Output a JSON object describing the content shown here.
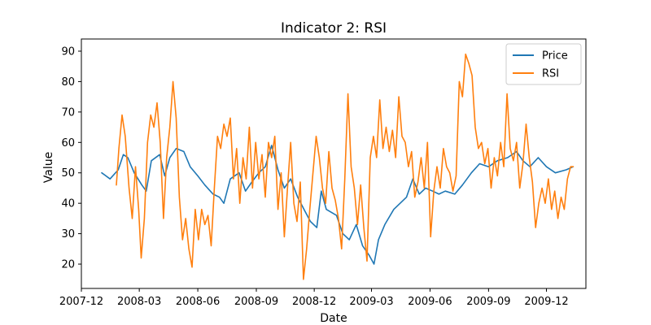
{
  "chart_data": {
    "type": "line",
    "title": "Indicator 2: RSI",
    "xlabel": "Date",
    "ylabel": "Value",
    "xlim": [
      "2007-12-01",
      "2010-02-01"
    ],
    "ylim": [
      12,
      94
    ],
    "x_ticks": [
      "2007-12",
      "2008-03",
      "2008-06",
      "2008-09",
      "2008-12",
      "2009-03",
      "2009-06",
      "2009-09",
      "2009-12"
    ],
    "y_ticks": [
      20,
      30,
      40,
      50,
      60,
      70,
      80,
      90
    ],
    "legend": {
      "position": "top-right"
    },
    "series": [
      {
        "name": "Price",
        "color": "#1f77b4",
        "points": [
          [
            "2008-01-02",
            50
          ],
          [
            "2008-01-15",
            48
          ],
          [
            "2008-01-28",
            51
          ],
          [
            "2008-02-05",
            56
          ],
          [
            "2008-02-12",
            55
          ],
          [
            "2008-02-22",
            50
          ],
          [
            "2008-03-05",
            46
          ],
          [
            "2008-03-12",
            44
          ],
          [
            "2008-03-20",
            54
          ],
          [
            "2008-04-02",
            56
          ],
          [
            "2008-04-10",
            49
          ],
          [
            "2008-04-18",
            55
          ],
          [
            "2008-04-28",
            58
          ],
          [
            "2008-05-10",
            57
          ],
          [
            "2008-05-20",
            52
          ],
          [
            "2008-06-01",
            49
          ],
          [
            "2008-06-12",
            46
          ],
          [
            "2008-06-25",
            43
          ],
          [
            "2008-07-05",
            42
          ],
          [
            "2008-07-12",
            40
          ],
          [
            "2008-07-22",
            48
          ],
          [
            "2008-08-05",
            50
          ],
          [
            "2008-08-15",
            44
          ],
          [
            "2008-08-25",
            47
          ],
          [
            "2008-09-05",
            50
          ],
          [
            "2008-09-15",
            52
          ],
          [
            "2008-09-25",
            59
          ],
          [
            "2008-10-05",
            51
          ],
          [
            "2008-10-15",
            45
          ],
          [
            "2008-10-25",
            48
          ],
          [
            "2008-11-05",
            42
          ],
          [
            "2008-11-15",
            38
          ],
          [
            "2008-11-25",
            34
          ],
          [
            "2008-12-05",
            32
          ],
          [
            "2008-12-12",
            44
          ],
          [
            "2008-12-20",
            38
          ],
          [
            "2009-01-05",
            36
          ],
          [
            "2009-01-15",
            30
          ],
          [
            "2009-01-25",
            28
          ],
          [
            "2009-02-05",
            33
          ],
          [
            "2009-02-15",
            26
          ],
          [
            "2009-02-25",
            23
          ],
          [
            "2009-03-05",
            20
          ],
          [
            "2009-03-12",
            28
          ],
          [
            "2009-03-22",
            33
          ],
          [
            "2009-04-05",
            38
          ],
          [
            "2009-04-15",
            40
          ],
          [
            "2009-04-25",
            42
          ],
          [
            "2009-05-05",
            48
          ],
          [
            "2009-05-15",
            43
          ],
          [
            "2009-05-25",
            45
          ],
          [
            "2009-06-05",
            44
          ],
          [
            "2009-06-15",
            43
          ],
          [
            "2009-06-25",
            44
          ],
          [
            "2009-07-10",
            43
          ],
          [
            "2009-07-22",
            46
          ],
          [
            "2009-08-05",
            50
          ],
          [
            "2009-08-18",
            53
          ],
          [
            "2009-09-01",
            52
          ],
          [
            "2009-09-15",
            54
          ],
          [
            "2009-10-01",
            55
          ],
          [
            "2009-10-15",
            57
          ],
          [
            "2009-10-25",
            54
          ],
          [
            "2009-11-05",
            52
          ],
          [
            "2009-11-18",
            55
          ],
          [
            "2009-12-01",
            52
          ],
          [
            "2009-12-15",
            50
          ],
          [
            "2010-01-01",
            51
          ],
          [
            "2010-01-12",
            52
          ]
        ]
      },
      {
        "name": "RSI",
        "color": "#ff7f0e",
        "points": [
          [
            "2008-01-25",
            46
          ],
          [
            "2008-01-29",
            58
          ],
          [
            "2008-02-03",
            69
          ],
          [
            "2008-02-08",
            62
          ],
          [
            "2008-02-14",
            45
          ],
          [
            "2008-02-19",
            35
          ],
          [
            "2008-02-24",
            52
          ],
          [
            "2008-02-29",
            38
          ],
          [
            "2008-03-04",
            22
          ],
          [
            "2008-03-09",
            35
          ],
          [
            "2008-03-14",
            60
          ],
          [
            "2008-03-19",
            69
          ],
          [
            "2008-03-24",
            65
          ],
          [
            "2008-03-29",
            73
          ],
          [
            "2008-04-03",
            60
          ],
          [
            "2008-04-08",
            35
          ],
          [
            "2008-04-13",
            55
          ],
          [
            "2008-04-18",
            65
          ],
          [
            "2008-04-23",
            80
          ],
          [
            "2008-04-28",
            68
          ],
          [
            "2008-05-03",
            42
          ],
          [
            "2008-05-08",
            28
          ],
          [
            "2008-05-13",
            35
          ],
          [
            "2008-05-18",
            25
          ],
          [
            "2008-05-23",
            19
          ],
          [
            "2008-05-28",
            38
          ],
          [
            "2008-06-02",
            28
          ],
          [
            "2008-06-07",
            38
          ],
          [
            "2008-06-12",
            33
          ],
          [
            "2008-06-17",
            36
          ],
          [
            "2008-06-22",
            26
          ],
          [
            "2008-06-27",
            45
          ],
          [
            "2008-07-02",
            62
          ],
          [
            "2008-07-07",
            58
          ],
          [
            "2008-07-12",
            66
          ],
          [
            "2008-07-17",
            62
          ],
          [
            "2008-07-22",
            68
          ],
          [
            "2008-07-27",
            48
          ],
          [
            "2008-08-01",
            58
          ],
          [
            "2008-08-06",
            40
          ],
          [
            "2008-08-11",
            55
          ],
          [
            "2008-08-16",
            48
          ],
          [
            "2008-08-21",
            65
          ],
          [
            "2008-08-26",
            45
          ],
          [
            "2008-08-31",
            60
          ],
          [
            "2008-09-05",
            48
          ],
          [
            "2008-09-10",
            56
          ],
          [
            "2008-09-15",
            42
          ],
          [
            "2008-09-20",
            60
          ],
          [
            "2008-09-25",
            55
          ],
          [
            "2008-09-30",
            62
          ],
          [
            "2008-10-05",
            38
          ],
          [
            "2008-10-10",
            50
          ],
          [
            "2008-10-15",
            29
          ],
          [
            "2008-10-20",
            45
          ],
          [
            "2008-10-25",
            60
          ],
          [
            "2008-10-30",
            40
          ],
          [
            "2008-11-04",
            34
          ],
          [
            "2008-11-09",
            47
          ],
          [
            "2008-11-14",
            15
          ],
          [
            "2008-11-19",
            25
          ],
          [
            "2008-11-24",
            38
          ],
          [
            "2008-11-29",
            50
          ],
          [
            "2008-12-04",
            62
          ],
          [
            "2008-12-09",
            55
          ],
          [
            "2008-12-14",
            45
          ],
          [
            "2008-12-19",
            40
          ],
          [
            "2008-12-24",
            57
          ],
          [
            "2008-12-29",
            45
          ],
          [
            "2009-01-03",
            41
          ],
          [
            "2009-01-08",
            35
          ],
          [
            "2009-01-13",
            25
          ],
          [
            "2009-01-18",
            48
          ],
          [
            "2009-01-23",
            76
          ],
          [
            "2009-01-28",
            52
          ],
          [
            "2009-02-02",
            45
          ],
          [
            "2009-02-07",
            33
          ],
          [
            "2009-02-12",
            46
          ],
          [
            "2009-02-17",
            32
          ],
          [
            "2009-02-22",
            21
          ],
          [
            "2009-02-27",
            55
          ],
          [
            "2009-03-04",
            62
          ],
          [
            "2009-03-09",
            55
          ],
          [
            "2009-03-14",
            74
          ],
          [
            "2009-03-19",
            58
          ],
          [
            "2009-03-24",
            65
          ],
          [
            "2009-03-29",
            57
          ],
          [
            "2009-04-03",
            64
          ],
          [
            "2009-04-08",
            55
          ],
          [
            "2009-04-13",
            75
          ],
          [
            "2009-04-18",
            62
          ],
          [
            "2009-04-23",
            60
          ],
          [
            "2009-04-28",
            52
          ],
          [
            "2009-05-03",
            57
          ],
          [
            "2009-05-08",
            42
          ],
          [
            "2009-05-13",
            47
          ],
          [
            "2009-05-18",
            55
          ],
          [
            "2009-05-23",
            45
          ],
          [
            "2009-05-28",
            60
          ],
          [
            "2009-06-02",
            29
          ],
          [
            "2009-06-07",
            44
          ],
          [
            "2009-06-12",
            52
          ],
          [
            "2009-06-17",
            45
          ],
          [
            "2009-06-22",
            58
          ],
          [
            "2009-06-27",
            52
          ],
          [
            "2009-07-02",
            50
          ],
          [
            "2009-07-07",
            44
          ],
          [
            "2009-07-12",
            49
          ],
          [
            "2009-07-17",
            80
          ],
          [
            "2009-07-22",
            75
          ],
          [
            "2009-07-27",
            89
          ],
          [
            "2009-08-01",
            86
          ],
          [
            "2009-08-06",
            82
          ],
          [
            "2009-08-11",
            65
          ],
          [
            "2009-08-16",
            58
          ],
          [
            "2009-08-21",
            60
          ],
          [
            "2009-08-26",
            53
          ],
          [
            "2009-08-31",
            58
          ],
          [
            "2009-09-05",
            45
          ],
          [
            "2009-09-10",
            55
          ],
          [
            "2009-09-15",
            49
          ],
          [
            "2009-09-20",
            60
          ],
          [
            "2009-09-25",
            52
          ],
          [
            "2009-09-30",
            76
          ],
          [
            "2009-10-05",
            58
          ],
          [
            "2009-10-10",
            54
          ],
          [
            "2009-10-15",
            60
          ],
          [
            "2009-10-20",
            45
          ],
          [
            "2009-10-25",
            53
          ],
          [
            "2009-10-30",
            66
          ],
          [
            "2009-11-04",
            55
          ],
          [
            "2009-11-09",
            47
          ],
          [
            "2009-11-14",
            32
          ],
          [
            "2009-11-19",
            40
          ],
          [
            "2009-11-24",
            45
          ],
          [
            "2009-11-29",
            40
          ],
          [
            "2009-12-04",
            48
          ],
          [
            "2009-12-09",
            38
          ],
          [
            "2009-12-14",
            44
          ],
          [
            "2009-12-19",
            35
          ],
          [
            "2009-12-24",
            42
          ],
          [
            "2009-12-29",
            38
          ],
          [
            "2010-01-03",
            48
          ],
          [
            "2010-01-08",
            52
          ],
          [
            "2010-01-12",
            52
          ]
        ]
      }
    ]
  }
}
